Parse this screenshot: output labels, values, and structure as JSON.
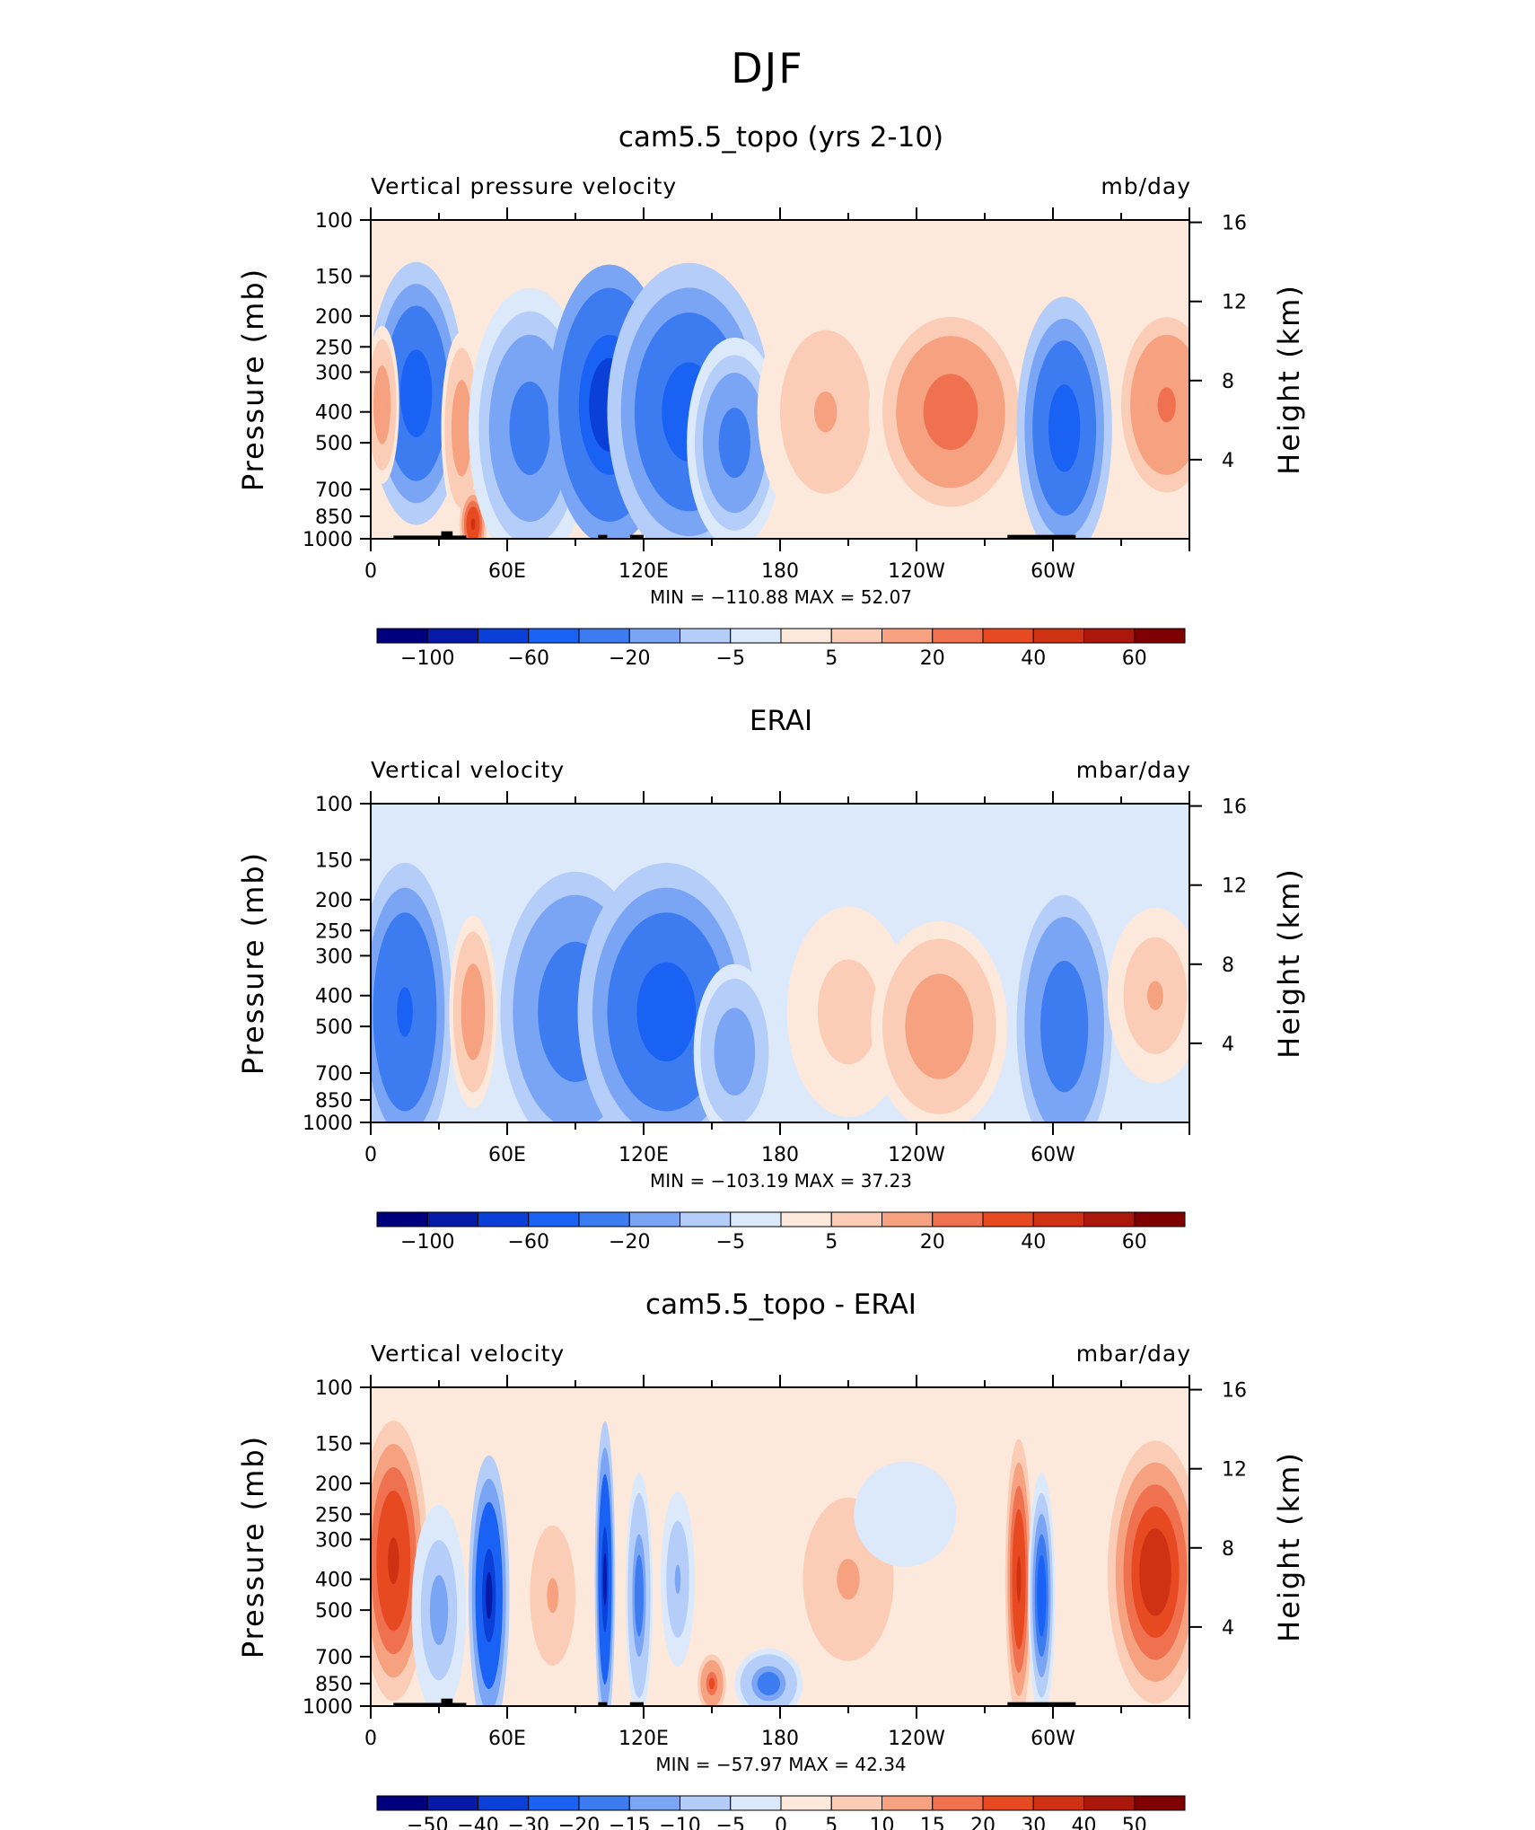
{
  "page_title": "DJF",
  "colors": {
    "cmap_13": [
      "#00007f",
      "#0719a7",
      "#0a3fd8",
      "#1a62f3",
      "#3d7cf0",
      "#7aa5f5",
      "#b4cdf9",
      "#dbe9fb",
      "#fde9dc",
      "#fbcdb6",
      "#f6a17f",
      "#f07150",
      "#e74a20",
      "#cf3212",
      "#ab170b",
      "#7f0000"
    ],
    "cmap_diff": [
      "#00007f",
      "#0719a7",
      "#0a3fd8",
      "#1a62f3",
      "#3d7cf0",
      "#7aa5f5",
      "#b4cdf9",
      "#dbe9fb",
      "#fde9dc",
      "#fbcdb6",
      "#f6a17f",
      "#f07150",
      "#e74a20",
      "#cf3212",
      "#ab170b",
      "#7f0000"
    ],
    "topo": "#000000"
  },
  "chart_data": [
    {
      "type": "heatmap",
      "title": "cam5.5_topo (yrs 2-10)",
      "left_label": "Vertical pressure velocity",
      "right_label": "mb/day",
      "ylabel": "Pressure (mb)",
      "y2label": "Height (km)",
      "x_ticks": [
        "0",
        "60E",
        "120E",
        "180",
        "120W",
        "60W"
      ],
      "y_ticks": [
        "100",
        "150",
        "200",
        "250",
        "300",
        "400",
        "500",
        "700",
        "850",
        "1000"
      ],
      "y2_ticks": [
        "16",
        "12",
        "8",
        "4"
      ],
      "ylim": [
        1000,
        100
      ],
      "xlim": [
        0,
        360
      ],
      "min_label": "MIN = -110.88",
      "max_label": "MAX = 52.07",
      "min_value": -110.88,
      "max_value": 52.07,
      "colorbar_labels": [
        "-100",
        "-60",
        "-20",
        "-5",
        "5",
        "20",
        "40",
        "60"
      ],
      "colorbar_levels": [
        -120,
        -100,
        -80,
        -60,
        -40,
        -20,
        -10,
        -5,
        0,
        5,
        10,
        20,
        30,
        40,
        50,
        60
      ],
      "has_topography": true,
      "features": [
        {
          "lon": 20,
          "p": 350,
          "value": -60,
          "w": 14,
          "h": 0.75
        },
        {
          "lon": 40,
          "p": 450,
          "value": 15,
          "w": 6,
          "h": 0.55
        },
        {
          "lon": 45,
          "p": 900,
          "value": 45,
          "w": 4,
          "h": 0.2
        },
        {
          "lon": 70,
          "p": 450,
          "value": -25,
          "w": 18,
          "h": 0.8
        },
        {
          "lon": 105,
          "p": 380,
          "value": -75,
          "w": 18,
          "h": 0.8
        },
        {
          "lon": 140,
          "p": 400,
          "value": -60,
          "w": 24,
          "h": 0.85
        },
        {
          "lon": 160,
          "p": 500,
          "value": -30,
          "w": 14,
          "h": 0.6
        },
        {
          "lon": 200,
          "p": 400,
          "value": 10,
          "w": 20,
          "h": 0.7
        },
        {
          "lon": 255,
          "p": 400,
          "value": 28,
          "w": 24,
          "h": 0.65
        },
        {
          "lon": 305,
          "p": 450,
          "value": -55,
          "w": 14,
          "h": 0.75
        },
        {
          "lon": 350,
          "p": 380,
          "value": 22,
          "w": 16,
          "h": 0.6
        },
        {
          "lon": 5,
          "p": 380,
          "value": 15,
          "w": 5,
          "h": 0.45
        }
      ]
    },
    {
      "type": "heatmap",
      "title": "ERAI",
      "left_label": "Vertical velocity",
      "right_label": "mbar/day",
      "ylabel": "Pressure (mb)",
      "y2label": "Height (km)",
      "x_ticks": [
        "0",
        "60E",
        "120E",
        "180",
        "120W",
        "60W"
      ],
      "y_ticks": [
        "100",
        "150",
        "200",
        "250",
        "300",
        "400",
        "500",
        "700",
        "850",
        "1000"
      ],
      "y2_ticks": [
        "16",
        "12",
        "8",
        "4"
      ],
      "ylim": [
        1000,
        100
      ],
      "xlim": [
        0,
        360
      ],
      "min_label": "MIN = -103.19",
      "max_label": "MAX = 37.23",
      "min_value": -103.19,
      "max_value": 37.23,
      "colorbar_labels": [
        "-100",
        "-60",
        "-20",
        "-5",
        "5",
        "20",
        "40",
        "60"
      ],
      "colorbar_levels": [
        -120,
        -100,
        -80,
        -60,
        -40,
        -20,
        -10,
        -5,
        0,
        5,
        10,
        20,
        30,
        40,
        50,
        60
      ],
      "has_topography": false,
      "features": [
        {
          "lon": 15,
          "p": 450,
          "value": -45,
          "w": 14,
          "h": 0.85
        },
        {
          "lon": 45,
          "p": 450,
          "value": 18,
          "w": 7,
          "h": 0.55
        },
        {
          "lon": 90,
          "p": 450,
          "value": -40,
          "w": 22,
          "h": 0.8
        },
        {
          "lon": 130,
          "p": 450,
          "value": -55,
          "w": 26,
          "h": 0.85
        },
        {
          "lon": 160,
          "p": 600,
          "value": -20,
          "w": 12,
          "h": 0.5
        },
        {
          "lon": 210,
          "p": 450,
          "value": 8,
          "w": 18,
          "h": 0.6
        },
        {
          "lon": 250,
          "p": 500,
          "value": 18,
          "w": 20,
          "h": 0.6
        },
        {
          "lon": 305,
          "p": 500,
          "value": -40,
          "w": 14,
          "h": 0.75
        },
        {
          "lon": 345,
          "p": 400,
          "value": 10,
          "w": 14,
          "h": 0.5
        }
      ]
    },
    {
      "type": "heatmap",
      "title": "cam5.5_topo - ERAI",
      "left_label": "Vertical velocity",
      "right_label": "mbar/day",
      "ylabel": "Pressure (mb)",
      "y2label": "Height (km)",
      "x_ticks": [
        "0",
        "60E",
        "120E",
        "180",
        "120W",
        "60W"
      ],
      "y_ticks": [
        "100",
        "150",
        "200",
        "250",
        "300",
        "400",
        "500",
        "700",
        "850",
        "1000"
      ],
      "y2_ticks": [
        "16",
        "12",
        "8",
        "4"
      ],
      "ylim": [
        1000,
        100
      ],
      "xlim": [
        0,
        360
      ],
      "min_label": "MIN = -57.97",
      "max_label": "MAX = 42.34",
      "min_value": -57.97,
      "max_value": 42.34,
      "colorbar_labels": [
        "-50",
        "-40",
        "-30",
        "-20",
        "-15",
        "-10",
        "-5",
        "0",
        "5",
        "10",
        "15",
        "20",
        "30",
        "40",
        "50"
      ],
      "colorbar_levels": [
        -60,
        -50,
        -40,
        -30,
        -20,
        -15,
        -10,
        -5,
        0,
        5,
        10,
        15,
        20,
        30,
        40,
        50
      ],
      "has_topography": true,
      "features": [
        {
          "lon": 10,
          "p": 350,
          "value": 30,
          "w": 10,
          "h": 0.8
        },
        {
          "lon": 30,
          "p": 500,
          "value": -15,
          "w": 8,
          "h": 0.6
        },
        {
          "lon": 52,
          "p": 450,
          "value": -45,
          "w": 6,
          "h": 0.8
        },
        {
          "lon": 80,
          "p": 450,
          "value": 10,
          "w": 10,
          "h": 0.6
        },
        {
          "lon": 103,
          "p": 400,
          "value": -45,
          "w": 3,
          "h": 0.9
        },
        {
          "lon": 118,
          "p": 450,
          "value": -20,
          "w": 4,
          "h": 0.7
        },
        {
          "lon": 135,
          "p": 400,
          "value": -12,
          "w": 5,
          "h": 0.5
        },
        {
          "lon": 150,
          "p": 850,
          "value": 22,
          "w": 5,
          "h": 0.2
        },
        {
          "lon": 175,
          "p": 850,
          "value": -20,
          "w": 10,
          "h": 0.2
        },
        {
          "lon": 210,
          "p": 400,
          "value": 10,
          "w": 20,
          "h": 0.7
        },
        {
          "lon": 235,
          "p": 250,
          "value": -5,
          "w": 15,
          "h": 0.3
        },
        {
          "lon": 285,
          "p": 400,
          "value": 30,
          "w": 4,
          "h": 0.8
        },
        {
          "lon": 295,
          "p": 450,
          "value": -25,
          "w": 4,
          "h": 0.7
        },
        {
          "lon": 345,
          "p": 380,
          "value": 38,
          "w": 14,
          "h": 0.75
        }
      ]
    }
  ]
}
